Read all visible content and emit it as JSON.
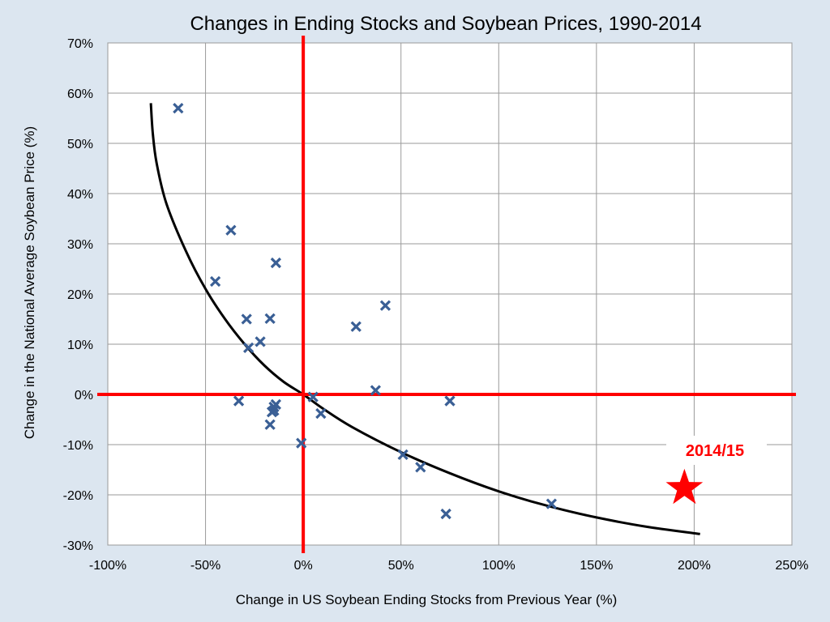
{
  "chart_data": {
    "type": "scatter",
    "title": "Changes in Ending Stocks and Soybean Prices, 1990-2014",
    "xlabel": "Change in US Soybean Ending Stocks from Previous Year (%)",
    "ylabel": "Change in the National Average Soybean Price (%)",
    "xlim": [
      -100,
      250
    ],
    "ylim": [
      -30,
      70
    ],
    "x_ticks": [
      -100,
      -50,
      0,
      50,
      100,
      150,
      200,
      250
    ],
    "y_ticks": [
      -30,
      -20,
      -10,
      0,
      10,
      20,
      30,
      40,
      50,
      60,
      70
    ],
    "x_tick_labels": [
      "-100%",
      "-50%",
      "0%",
      "50%",
      "100%",
      "150%",
      "200%",
      "250%"
    ],
    "y_tick_labels": [
      "-30%",
      "-20%",
      "-10%",
      "0%",
      "10%",
      "20%",
      "30%",
      "40%",
      "50%",
      "60%",
      "70%"
    ],
    "grid": true,
    "marker_color": "#3a5f95",
    "reference_line_color": "#ff0000",
    "trend_color": "#000000",
    "points": [
      {
        "x": -64,
        "y": 57
      },
      {
        "x": -37,
        "y": 32.7
      },
      {
        "x": -45,
        "y": 22.5
      },
      {
        "x": -14,
        "y": 26.2
      },
      {
        "x": -29,
        "y": 15
      },
      {
        "x": -17,
        "y": 15.1
      },
      {
        "x": -28,
        "y": 9.3
      },
      {
        "x": -22,
        "y": 10.5
      },
      {
        "x": -33,
        "y": -1.3
      },
      {
        "x": -15,
        "y": -2.5
      },
      {
        "x": -14,
        "y": -2
      },
      {
        "x": -16,
        "y": -3.5
      },
      {
        "x": -15,
        "y": -3.2
      },
      {
        "x": -17,
        "y": -6
      },
      {
        "x": -1,
        "y": -9.7
      },
      {
        "x": 5,
        "y": -0.5
      },
      {
        "x": 9,
        "y": -3.8
      },
      {
        "x": 27,
        "y": 13.5
      },
      {
        "x": 42,
        "y": 17.7
      },
      {
        "x": 37,
        "y": 0.8
      },
      {
        "x": 51,
        "y": -12
      },
      {
        "x": 60,
        "y": -14.5
      },
      {
        "x": 73,
        "y": -23.8
      },
      {
        "x": 75,
        "y": -1.3
      },
      {
        "x": 127,
        "y": -21.8
      }
    ],
    "trend_line": [
      {
        "x": -78,
        "y": 58
      },
      {
        "x": -77,
        "y": 52
      },
      {
        "x": -75,
        "y": 46
      },
      {
        "x": -70,
        "y": 38
      },
      {
        "x": -60,
        "y": 28.5
      },
      {
        "x": -50,
        "y": 21
      },
      {
        "x": -40,
        "y": 15
      },
      {
        "x": -30,
        "y": 10
      },
      {
        "x": -20,
        "y": 5.8
      },
      {
        "x": -10,
        "y": 2.5
      },
      {
        "x": 0,
        "y": 0
      },
      {
        "x": 10,
        "y": -2.8
      },
      {
        "x": 25,
        "y": -6.5
      },
      {
        "x": 50,
        "y": -11.5
      },
      {
        "x": 75,
        "y": -15.7
      },
      {
        "x": 100,
        "y": -19.3
      },
      {
        "x": 125,
        "y": -22.2
      },
      {
        "x": 150,
        "y": -24.5
      },
      {
        "x": 175,
        "y": -26.3
      },
      {
        "x": 203,
        "y": -27.8
      }
    ],
    "annotation": {
      "label": "2014/15",
      "x": 195,
      "y": -19,
      "color": "#ff0000"
    }
  }
}
